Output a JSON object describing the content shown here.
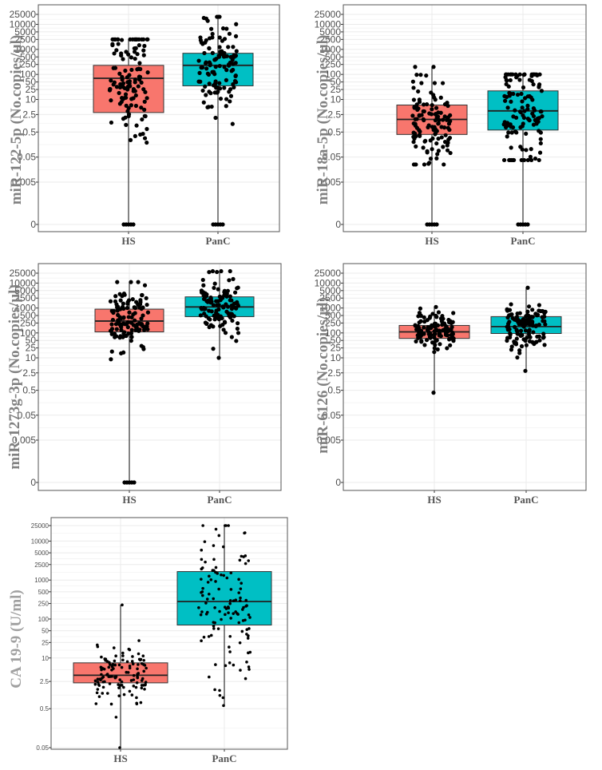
{
  "figure": {
    "colors": {
      "HS": "#F8766D",
      "PanC": "#00BFC4",
      "grid": "#ebebeb",
      "frame": "#555555",
      "point": "#000000"
    }
  },
  "chart_data": [
    {
      "type": "box",
      "ylabel": "miR-122-5p (No.copies/µl)",
      "yscale": "log-with-zero",
      "ytick_labels": [
        "0",
        "0.005",
        "0.05",
        "0.5",
        "2.5",
        "10",
        "25",
        "50",
        "100",
        "250",
        "500",
        "1000",
        "2500",
        "5000",
        "10000",
        "25000"
      ],
      "ytick_values": [
        0,
        0.005,
        0.05,
        0.5,
        2.5,
        10,
        25,
        50,
        100,
        250,
        500,
        1000,
        2500,
        5000,
        10000,
        25000
      ],
      "categories": [
        "HS",
        "PanC"
      ],
      "series": [
        {
          "name": "HS",
          "min": 0,
          "q1": 3,
          "median": 70,
          "q3": 230,
          "max": 2500
        },
        {
          "name": "PanC",
          "min": 0,
          "q1": 35,
          "median": 230,
          "q3": 700,
          "max": 20000
        }
      ]
    },
    {
      "type": "box",
      "ylabel": "miR-18a-5p (No.copies/µl)",
      "yscale": "log-with-zero",
      "ytick_labels": [
        "0",
        "0.005",
        "0.05",
        "0.5",
        "2.5",
        "10",
        "25",
        "50",
        "100",
        "250",
        "500",
        "1000",
        "2500",
        "5000",
        "10000",
        "25000"
      ],
      "ytick_values": [
        0,
        0.005,
        0.05,
        0.5,
        2.5,
        10,
        25,
        50,
        100,
        250,
        500,
        1000,
        2500,
        5000,
        10000,
        25000
      ],
      "categories": [
        "HS",
        "PanC"
      ],
      "series": [
        {
          "name": "HS",
          "min": 0,
          "q1": 0.4,
          "median": 1.6,
          "q3": 6,
          "max": 200
        },
        {
          "name": "PanC",
          "min": 0,
          "q1": 0.6,
          "median": 3.5,
          "q3": 22,
          "max": 100
        }
      ]
    },
    {
      "type": "box",
      "ylabel": "miR-1273g-3p (No.copies/µl)",
      "yscale": "log-with-zero",
      "ytick_labels": [
        "0",
        "0.005",
        "0.05",
        "0.5",
        "2.5",
        "10",
        "25",
        "50",
        "100",
        "250",
        "500",
        "1000",
        "2500",
        "5000",
        "10000",
        "25000"
      ],
      "ytick_values": [
        0,
        0.005,
        0.05,
        0.5,
        2.5,
        10,
        25,
        50,
        100,
        250,
        500,
        1000,
        2500,
        5000,
        10000,
        25000
      ],
      "categories": [
        "HS",
        "PanC"
      ],
      "series": [
        {
          "name": "HS",
          "min": 0,
          "q1": 110,
          "median": 300,
          "q3": 900,
          "max": 11000
        },
        {
          "name": "PanC",
          "min": 10,
          "q1": 450,
          "median": 1100,
          "q3": 2800,
          "max": 30000
        }
      ]
    },
    {
      "type": "box",
      "ylabel": "miR-6126 (No.copies/µl)",
      "yscale": "log-with-zero",
      "ytick_labels": [
        "0",
        "0.005",
        "0.05",
        "0.5",
        "2.5",
        "10",
        "25",
        "50",
        "100",
        "250",
        "500",
        "1000",
        "2500",
        "5000",
        "10000",
        "25000"
      ],
      "ytick_values": [
        0,
        0.005,
        0.05,
        0.5,
        2.5,
        10,
        25,
        50,
        100,
        250,
        500,
        1000,
        2500,
        5000,
        10000,
        25000
      ],
      "categories": [
        "HS",
        "PanC"
      ],
      "series": [
        {
          "name": "HS",
          "min": 0.4,
          "q1": 60,
          "median": 110,
          "q3": 200,
          "max": 1100
        },
        {
          "name": "PanC",
          "min": 3,
          "q1": 95,
          "median": 180,
          "q3": 450,
          "max": 6500
        }
      ]
    },
    {
      "type": "box",
      "ylabel": "CA 19-9  (U/ml)",
      "yscale": "log",
      "ytick_labels": [
        "0.05",
        "0.5",
        "2.5",
        "10",
        "25",
        "50",
        "100",
        "250",
        "500",
        "1000",
        "2500",
        "5000",
        "10000",
        "25000"
      ],
      "ytick_values": [
        0.05,
        0.5,
        2.5,
        10,
        25,
        50,
        100,
        250,
        500,
        1000,
        2500,
        5000,
        10000,
        25000
      ],
      "categories": [
        "HS",
        "PanC"
      ],
      "series": [
        {
          "name": "HS",
          "min": 0.05,
          "q1": 2.3,
          "median": 3.6,
          "q3": 7.5,
          "max": 230
        },
        {
          "name": "PanC",
          "min": 0.6,
          "q1": 70,
          "median": 280,
          "q3": 1650,
          "max": 25000
        }
      ]
    }
  ]
}
